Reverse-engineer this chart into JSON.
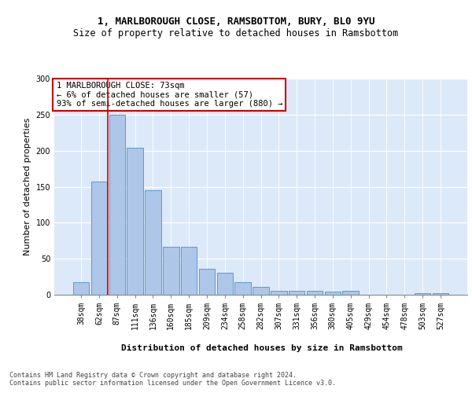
{
  "title": "1, MARLBOROUGH CLOSE, RAMSBOTTOM, BURY, BL0 9YU",
  "subtitle": "Size of property relative to detached houses in Ramsbottom",
  "xlabel": "Distribution of detached houses by size in Ramsbottom",
  "ylabel": "Number of detached properties",
  "categories": [
    "38sqm",
    "62sqm",
    "87sqm",
    "111sqm",
    "136sqm",
    "160sqm",
    "185sqm",
    "209sqm",
    "234sqm",
    "258sqm",
    "282sqm",
    "307sqm",
    "331sqm",
    "356sqm",
    "380sqm",
    "405sqm",
    "429sqm",
    "454sqm",
    "478sqm",
    "503sqm",
    "527sqm"
  ],
  "values": [
    18,
    157,
    250,
    204,
    145,
    67,
    67,
    36,
    31,
    17,
    11,
    5,
    6,
    6,
    4,
    5,
    0,
    0,
    0,
    2,
    2
  ],
  "bar_color": "#aec6e8",
  "bar_edge_color": "#5b9bd5",
  "annotation_text": "1 MARLBOROUGH CLOSE: 73sqm\n← 6% of detached houses are smaller (57)\n93% of semi-detached houses are larger (880) →",
  "annotation_box_color": "#ffffff",
  "annotation_box_edge_color": "#cc0000",
  "vline_x": 1.5,
  "vline_color": "#cc0000",
  "ylim": [
    0,
    300
  ],
  "yticks": [
    0,
    50,
    100,
    150,
    200,
    250,
    300
  ],
  "background_color": "#dce9f8",
  "footer_text": "Contains HM Land Registry data © Crown copyright and database right 2024.\nContains public sector information licensed under the Open Government Licence v3.0.",
  "title_fontsize": 9,
  "subtitle_fontsize": 8.5,
  "axis_label_fontsize": 8,
  "tick_fontsize": 7,
  "annotation_fontsize": 7.5,
  "footer_fontsize": 6,
  "ylabel_fontsize": 8
}
